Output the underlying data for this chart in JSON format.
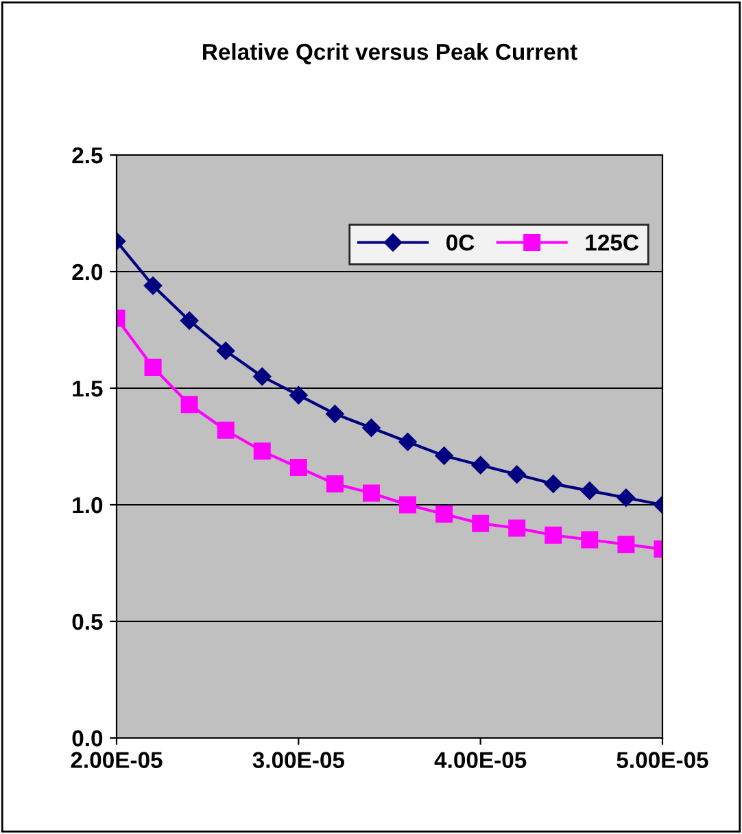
{
  "chart_data": {
    "type": "line",
    "title": "Relative Qcrit versus Peak Current",
    "x": [
      2e-05,
      2.2e-05,
      2.4e-05,
      2.6e-05,
      2.8e-05,
      3e-05,
      3.2e-05,
      3.4e-05,
      3.6e-05,
      3.8e-05,
      4e-05,
      4.2e-05,
      4.4e-05,
      4.6e-05,
      4.8e-05,
      5e-05
    ],
    "series": [
      {
        "name": "0C",
        "color": "#000080",
        "marker": "diamond",
        "values": [
          2.13,
          1.94,
          1.79,
          1.66,
          1.55,
          1.47,
          1.39,
          1.33,
          1.27,
          1.21,
          1.17,
          1.13,
          1.09,
          1.06,
          1.03,
          1.0
        ]
      },
      {
        "name": "125C",
        "color": "#ff00ff",
        "marker": "square",
        "values": [
          1.8,
          1.59,
          1.43,
          1.32,
          1.23,
          1.16,
          1.09,
          1.05,
          1.0,
          0.96,
          0.92,
          0.9,
          0.87,
          0.85,
          0.83,
          0.81
        ]
      }
    ],
    "xlim": [
      2e-05,
      5e-05
    ],
    "xticks": [
      {
        "value": 2e-05,
        "label": "2.00E-05"
      },
      {
        "value": 3e-05,
        "label": "3.00E-05"
      },
      {
        "value": 4e-05,
        "label": "4.00E-05"
      },
      {
        "value": 5e-05,
        "label": "5.00E-05"
      }
    ],
    "ylim": [
      0,
      2.5
    ],
    "yticks": [
      {
        "value": 0,
        "label": "0.0"
      },
      {
        "value": 0.5,
        "label": "0.5"
      },
      {
        "value": 1.0,
        "label": "1.0"
      },
      {
        "value": 1.5,
        "label": "1.5"
      },
      {
        "value": 2.0,
        "label": "2.0"
      },
      {
        "value": 2.5,
        "label": "2.5"
      }
    ],
    "grid": "y",
    "legend": "top right",
    "line_style": "solid"
  }
}
